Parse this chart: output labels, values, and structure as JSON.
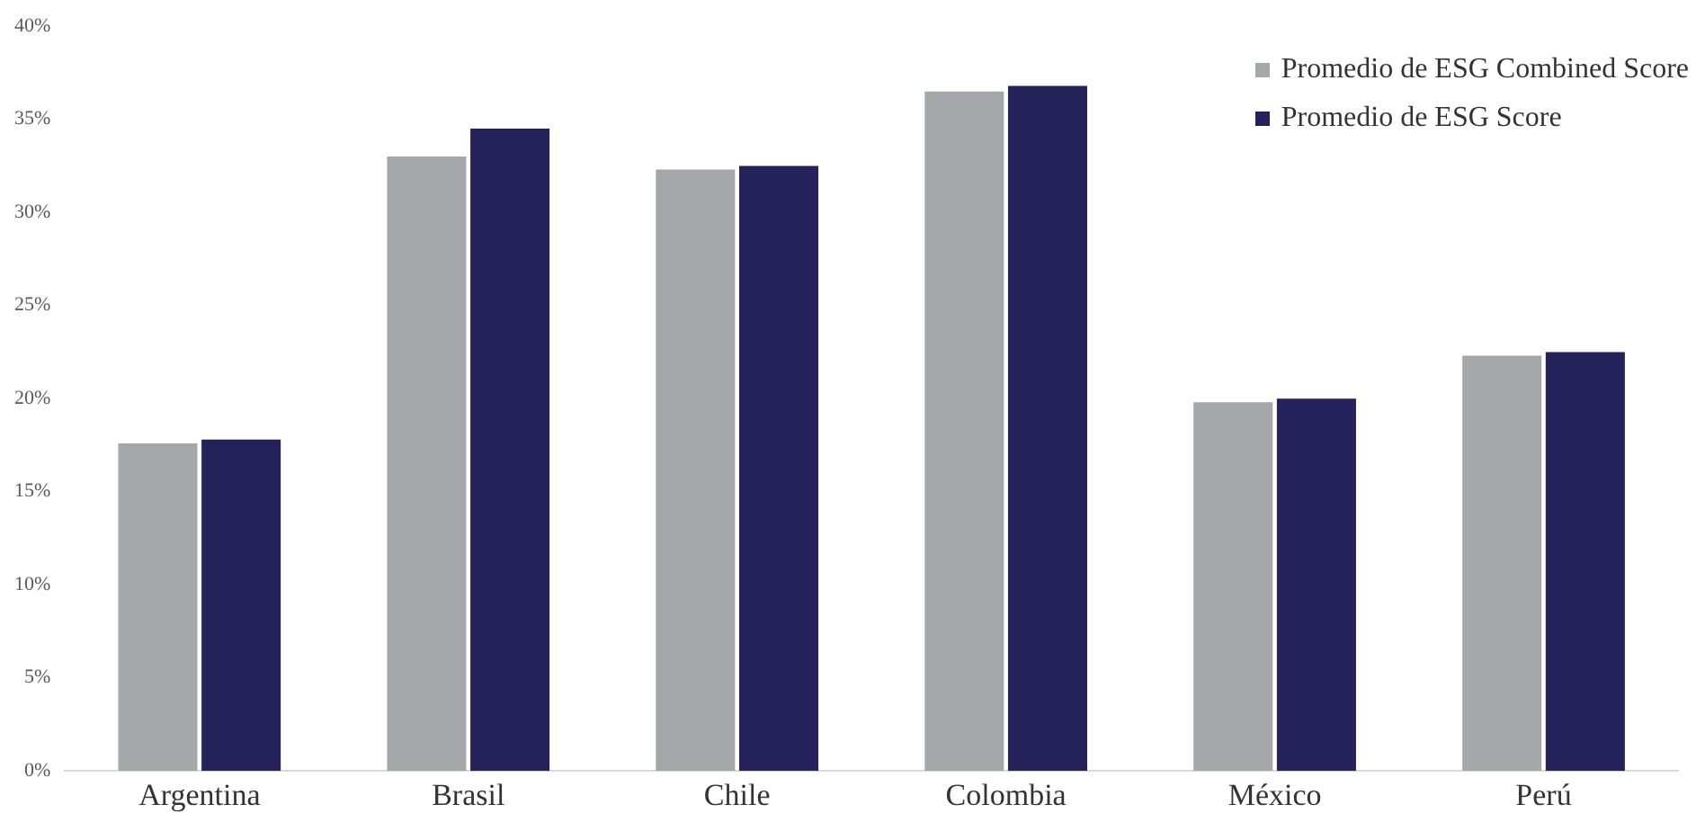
{
  "chart_data": {
    "type": "bar",
    "categories": [
      "Argentina",
      "Brasil",
      "Chile",
      "Colombia",
      "México",
      "Perú"
    ],
    "series": [
      {
        "name": "Promedio de ESG Combined Score",
        "color": "#a5a7aa",
        "values": [
          17.6,
          33.0,
          32.3,
          36.5,
          19.8,
          22.3
        ]
      },
      {
        "name": "Promedio de ESG Score",
        "color": "#25215a",
        "values": [
          17.8,
          34.5,
          32.5,
          36.8,
          20.0,
          22.5
        ]
      }
    ],
    "ylim": [
      0,
      40
    ],
    "yticks": [
      {
        "value": 0,
        "label": "0%"
      },
      {
        "value": 5,
        "label": "5%"
      },
      {
        "value": 10,
        "label": "10%"
      },
      {
        "value": 15,
        "label": "15%"
      },
      {
        "value": 20,
        "label": "20%"
      },
      {
        "value": 25,
        "label": "25%"
      },
      {
        "value": 30,
        "label": "30%"
      },
      {
        "value": 35,
        "label": "35%"
      },
      {
        "value": 40,
        "label": "40%"
      }
    ],
    "grid": false,
    "legend": "top right"
  }
}
